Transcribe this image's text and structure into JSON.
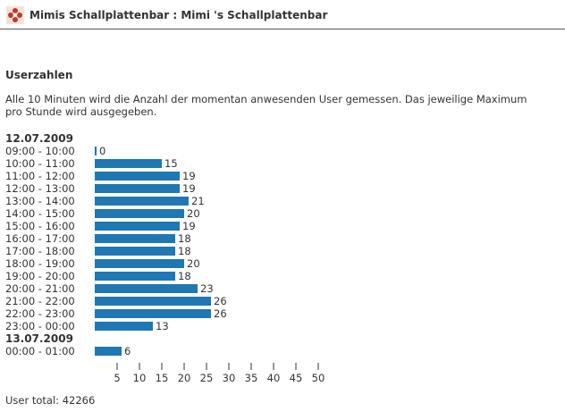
{
  "header": {
    "title": "Mimis Schallplattenbar : Mimi 's Schallplattenbar",
    "logo_icon": "red-flower-logo-icon"
  },
  "section": {
    "title": "Userzahlen",
    "description": "Alle 10 Minuten wird die Anzahl der momentan anwesenden User gemessen. Das jeweilige Maximum pro Stunde wird ausgegeben."
  },
  "chart_data": {
    "type": "bar",
    "orientation": "horizontal",
    "bar_color": "#1f77b4",
    "groups": [
      {
        "date": "12.07.2009",
        "rows": [
          {
            "label": "09:00 - 10:00",
            "value": 0
          },
          {
            "label": "10:00 - 11:00",
            "value": 15
          },
          {
            "label": "11:00 - 12:00",
            "value": 19
          },
          {
            "label": "12:00 - 13:00",
            "value": 19
          },
          {
            "label": "13:00 - 14:00",
            "value": 21
          },
          {
            "label": "14:00 - 15:00",
            "value": 20
          },
          {
            "label": "15:00 - 16:00",
            "value": 19
          },
          {
            "label": "16:00 - 17:00",
            "value": 18
          },
          {
            "label": "17:00 - 18:00",
            "value": 18
          },
          {
            "label": "18:00 - 19:00",
            "value": 20
          },
          {
            "label": "19:00 - 20:00",
            "value": 18
          },
          {
            "label": "20:00 - 21:00",
            "value": 23
          },
          {
            "label": "21:00 - 22:00",
            "value": 26
          },
          {
            "label": "22:00 - 23:00",
            "value": 26
          },
          {
            "label": "23:00 - 00:00",
            "value": 13
          }
        ]
      },
      {
        "date": "13.07.2009",
        "rows": [
          {
            "label": "00:00 - 01:00",
            "value": 6
          }
        ]
      }
    ],
    "xticks": [
      5,
      10,
      15,
      20,
      25,
      30,
      35,
      40,
      45,
      50
    ],
    "xlim": [
      0,
      50
    ]
  },
  "footer": {
    "total": "User total: 42266"
  }
}
